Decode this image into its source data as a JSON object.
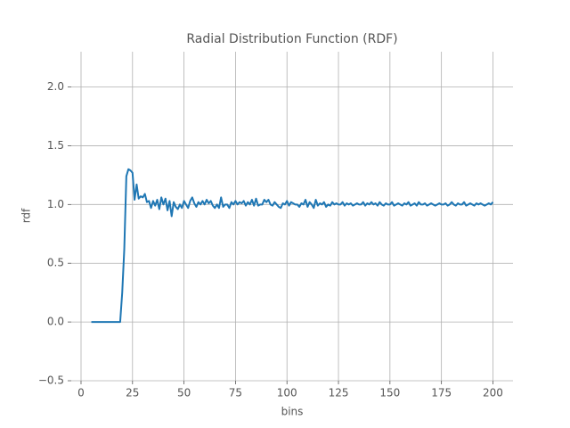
{
  "chart_data": {
    "type": "line",
    "title": "Radial Distribution Function (RDF)",
    "x_label": "bins",
    "y_label": "rdf",
    "color": "#1f77b4",
    "grid": true,
    "xlim": [
      -4.75,
      209.75
    ],
    "ylim": [
      -0.5,
      2.3
    ],
    "xticks": [
      0,
      25,
      50,
      75,
      100,
      125,
      150,
      175,
      200
    ],
    "yticks": [
      {
        "value": -0.5,
        "label": "−0.5"
      },
      {
        "value": 0,
        "label": "0.0"
      },
      {
        "value": 0.5,
        "label": "0.5"
      },
      {
        "value": 1,
        "label": "1.0"
      },
      {
        "value": 1.5,
        "label": "1.5"
      },
      {
        "value": 2,
        "label": "2.0"
      }
    ],
    "x": [
      5,
      6,
      7,
      8,
      9,
      10,
      11,
      12,
      13,
      14,
      15,
      16,
      17,
      18,
      19,
      20,
      21,
      22,
      23,
      24,
      25,
      26,
      27,
      28,
      29,
      30,
      31,
      32,
      33,
      34,
      35,
      36,
      37,
      38,
      39,
      40,
      41,
      42,
      43,
      44,
      45,
      46,
      47,
      48,
      49,
      50,
      51,
      52,
      53,
      54,
      55,
      56,
      57,
      58,
      59,
      60,
      61,
      62,
      63,
      64,
      65,
      66,
      67,
      68,
      69,
      70,
      71,
      72,
      73,
      74,
      75,
      76,
      77,
      78,
      79,
      80,
      81,
      82,
      83,
      84,
      85,
      86,
      87,
      88,
      89,
      90,
      91,
      92,
      93,
      94,
      95,
      96,
      97,
      98,
      99,
      100,
      101,
      102,
      103,
      104,
      105,
      106,
      107,
      108,
      109,
      110,
      111,
      112,
      113,
      114,
      115,
      116,
      117,
      118,
      119,
      120,
      121,
      122,
      123,
      124,
      125,
      126,
      127,
      128,
      129,
      130,
      131,
      132,
      133,
      134,
      135,
      136,
      137,
      138,
      139,
      140,
      141,
      142,
      143,
      144,
      145,
      146,
      147,
      148,
      149,
      150,
      151,
      152,
      153,
      154,
      155,
      156,
      157,
      158,
      159,
      160,
      161,
      162,
      163,
      164,
      165,
      166,
      167,
      168,
      169,
      170,
      171,
      172,
      173,
      174,
      175,
      176,
      177,
      178,
      179,
      180,
      181,
      182,
      183,
      184,
      185,
      186,
      187,
      188,
      189,
      190,
      191,
      192,
      193,
      194,
      195,
      196,
      197,
      198,
      199,
      200
    ],
    "values": [
      0,
      0,
      0,
      0,
      0,
      0,
      0,
      0,
      0,
      0,
      0,
      0,
      0,
      0,
      0,
      0.25,
      0.62,
      1.24,
      1.3,
      1.29,
      1.27,
      1.04,
      1.17,
      1.05,
      1.07,
      1.06,
      1.09,
      1.02,
      1.03,
      0.97,
      1.03,
      0.99,
      1.04,
      0.96,
      1.06,
      1.0,
      1.05,
      0.95,
      1.03,
      0.9,
      1.02,
      0.98,
      0.96,
      1.0,
      0.97,
      1.03,
      1.0,
      0.97,
      1.03,
      1.06,
      1.01,
      0.98,
      1.02,
      1.0,
      1.03,
      1.0,
      1.04,
      1.01,
      1.03,
      0.99,
      0.97,
      1.0,
      0.97,
      1.06,
      0.98,
      1.0,
      1.0,
      0.97,
      1.02,
      1.0,
      1.03,
      1.0,
      1.02,
      1.01,
      1.03,
      0.99,
      1.02,
      1.0,
      1.04,
      0.99,
      1.05,
      0.99,
      1.0,
      1.0,
      1.04,
      1.02,
      1.04,
      1.0,
      0.99,
      1.02,
      1.0,
      0.98,
      0.97,
      1.01,
      1.0,
      1.03,
      0.99,
      1.02,
      1.01,
      1.0,
      1.0,
      0.98,
      1.01,
      1.0,
      1.04,
      0.98,
      1.02,
      1.0,
      0.97,
      1.04,
      0.99,
      1.01,
      1.0,
      1.02,
      0.98,
      1.0,
      0.99,
      1.02,
      1.0,
      1.01,
      1.0,
      1.0,
      1.02,
      0.99,
      1.01,
      1.0,
      1.01,
      0.99,
      1.0,
      1.01,
      1.0,
      1.0,
      1.02,
      0.99,
      1.01,
      1.0,
      1.02,
      1.0,
      1.01,
      0.99,
      1.02,
      1.0,
      0.99,
      1.01,
      1.0,
      1.0,
      1.02,
      0.99,
      1.0,
      1.01,
      1.0,
      0.99,
      1.01,
      1.0,
      1.02,
      0.99,
      1.0,
      1.01,
      0.99,
      1.02,
      1.0,
      1.0,
      1.01,
      0.99,
      1.0,
      1.01,
      1.0,
      0.99,
      1.0,
      1.01,
      1.0,
      1.0,
      1.01,
      0.99,
      1.0,
      1.02,
      1.0,
      0.99,
      1.01,
      1.0,
      1.0,
      1.02,
      0.99,
      1.0,
      1.01,
      1.0,
      0.99,
      1.01,
      1.0,
      1.01,
      1.0,
      0.99,
      1.0,
      1.01,
      1.0,
      1.02
    ]
  }
}
